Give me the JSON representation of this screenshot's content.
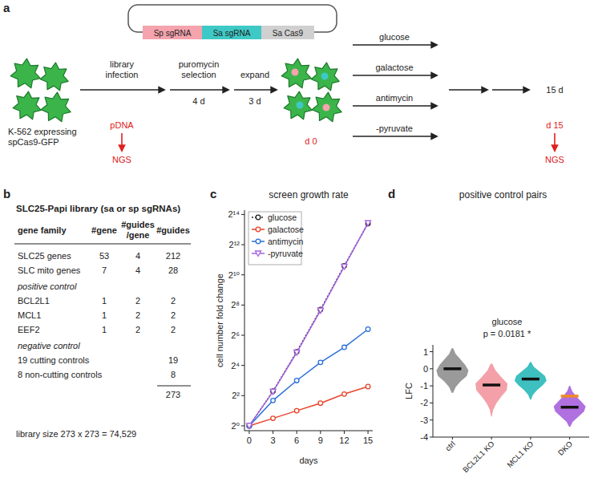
{
  "panel_labels": [
    "a",
    "b",
    "c",
    "d"
  ],
  "diagram": {
    "plasmid": [
      {
        "label": "Sp sgRNA",
        "color": "#f5a3ad"
      },
      {
        "label": "Sa sgRNA",
        "color": "#3ec9c6"
      },
      {
        "label": "Sa Cas9",
        "color": "#d0d0d0"
      }
    ],
    "cell_label": [
      "K-562 expressing",
      "spCas9-GFP"
    ],
    "infection": [
      "library",
      "infection"
    ],
    "selection": [
      "puromycin",
      "selection"
    ],
    "selection_duration": "4 d",
    "expansion": "expand",
    "expansion_duration": "3 d",
    "start_point": "d 0",
    "conditions": [
      "glucose",
      "galactose",
      "antimycin",
      "-pyruvate"
    ],
    "screen_duration": "15 d",
    "end_point": "d 15",
    "plasmid_sample": "pDNA",
    "readout": "NGS"
  },
  "table": {
    "title": "SLC25-Papi library (sa or sp sgRNAs)",
    "header": [
      [
        "gene family"
      ],
      [
        "#gene"
      ],
      [
        "#guides",
        "/gene"
      ],
      [
        "#guides"
      ]
    ],
    "rows": [
      {
        "cells": [
          "SLC25 genes",
          "53",
          "4",
          "212"
        ]
      },
      {
        "cells": [
          "SLC mito genes",
          "7",
          "4",
          "28"
        ]
      },
      {
        "section": "positive control"
      },
      {
        "cells": [
          "BCL2L1",
          "1",
          "2",
          "2"
        ]
      },
      {
        "cells": [
          "MCL1",
          "1",
          "2",
          "2"
        ]
      },
      {
        "cells": [
          "EEF2",
          "1",
          "2",
          "2"
        ]
      },
      {
        "section": "negative control"
      },
      {
        "cells": [
          "19 cutting controls",
          null,
          null,
          "19"
        ]
      },
      {
        "cells": [
          "8 non-cutting controls",
          null,
          null,
          "8"
        ]
      }
    ],
    "total": "273",
    "footer": "library size 273 x 273 = 74,529"
  },
  "chart_data": [
    {
      "type": "line",
      "title": "screen growth rate",
      "x_label": "days",
      "y_label": "cell number fold change",
      "x": [
        0,
        3,
        6,
        9,
        12,
        15
      ],
      "xlim": [
        -0.6,
        15.6
      ],
      "xticks": [
        0,
        3,
        6,
        9,
        12,
        15
      ],
      "ylim": [
        0.8,
        20000
      ],
      "yticks": [
        {
          "value": 1,
          "label": "2⁰"
        },
        {
          "value": 4,
          "label": "2²"
        },
        {
          "value": 16,
          "label": "2⁴"
        },
        {
          "value": 64,
          "label": "2⁶"
        },
        {
          "value": 256,
          "label": "2⁸"
        },
        {
          "value": 1024,
          "label": "2¹⁰"
        },
        {
          "value": 4096,
          "label": "2¹²"
        },
        {
          "value": 16384,
          "label": "2¹⁴"
        }
      ],
      "log": "y",
      "grid": false,
      "legend": "top-left",
      "series": [
        {
          "name": "glucose",
          "color": "#222222",
          "marker": "circle",
          "line_style": "dotted",
          "values": [
            1,
            4.9,
            30,
            208,
            1552,
            10809
          ]
        },
        {
          "name": "galactose",
          "color": "#e8452c",
          "marker": "circle",
          "line_style": "solid",
          "values": [
            1,
            1.41,
            2,
            2.83,
            4.3,
            6.06
          ]
        },
        {
          "name": "antimycin",
          "color": "#2a6fdb",
          "marker": "circle",
          "line_style": "solid",
          "values": [
            1,
            3.2,
            8,
            18.4,
            36.8,
            84.4
          ]
        },
        {
          "name": "-pyruvate",
          "color": "#a461e0",
          "marker": "triangle-down",
          "line_style": "solid",
          "values": [
            1,
            4.8,
            29,
            200,
            1500,
            11000
          ]
        }
      ]
    },
    {
      "type": "violin",
      "title": "positive control pairs",
      "subtitle": "glucose",
      "annotation": "p = 0.0181 *",
      "y_label": "LFC",
      "categories": [
        "ctrl",
        "BCL2L1 KO",
        "MCL1 KO",
        "DKO"
      ],
      "colors": [
        "#9a9a9a",
        "#f4a0a8",
        "#3fc0c0",
        "#b070e0"
      ],
      "ylim": [
        -4,
        1.4
      ],
      "yticks": [
        -4,
        -3,
        -2,
        -1,
        0,
        1
      ],
      "grid": false,
      "violins": [
        {
          "min": -1.4,
          "max": 1.2,
          "density": [
            0.05,
            0.2,
            0.5,
            0.9,
            1.0,
            0.8,
            0.5,
            0.2,
            0.05
          ]
        },
        {
          "min": -2.8,
          "max": 0.3,
          "density": [
            0.02,
            0.1,
            0.3,
            0.6,
            0.95,
            1.0,
            0.6,
            0.25,
            0.05
          ]
        },
        {
          "min": -1.8,
          "max": 0.4,
          "density": [
            0.03,
            0.15,
            0.4,
            0.75,
            1.0,
            0.9,
            0.55,
            0.2,
            0.03
          ]
        },
        {
          "min": -3.4,
          "max": -1.0,
          "density": [
            0.03,
            0.2,
            0.55,
            0.9,
            1.0,
            0.7,
            0.4,
            0.15,
            0.03
          ]
        }
      ],
      "series": [
        {
          "type": "median",
          "color": "#111111",
          "values": [
            0,
            -0.95,
            -0.6,
            -2.25
          ]
        },
        {
          "type": "expected",
          "color": "#f08a24",
          "values": [
            null,
            null,
            null,
            -1.6
          ]
        }
      ]
    }
  ]
}
